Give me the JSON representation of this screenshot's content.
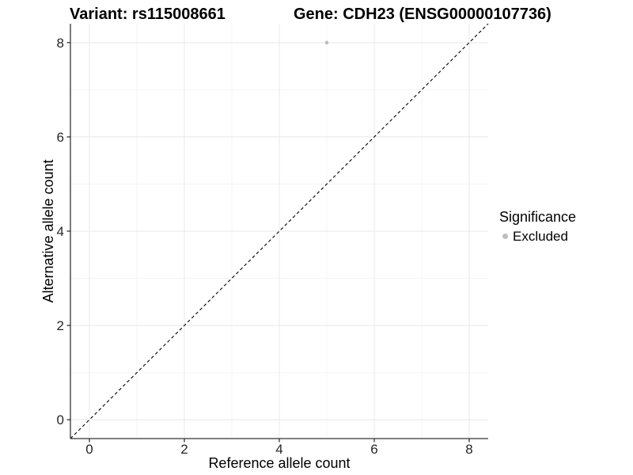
{
  "chart_data": {
    "type": "scatter",
    "title_left": "Variant: rs115008661",
    "title_right": "Gene: CDH23 (ENSG00000107736)",
    "xlabel": "Reference allele count",
    "ylabel": "Alternative allele count",
    "xlim": [
      -0.4,
      8.4
    ],
    "ylim": [
      -0.4,
      8.4
    ],
    "x_ticks": [
      0,
      2,
      4,
      6,
      8
    ],
    "y_ticks": [
      0,
      2,
      4,
      6,
      8
    ],
    "x_minor_ticks": [
      1,
      3,
      5,
      7
    ],
    "y_minor_ticks": [
      1,
      3,
      5,
      7
    ],
    "grid": true,
    "legend_position": "right",
    "points": [
      {
        "x": 5,
        "y": 8,
        "series": "Excluded"
      }
    ],
    "reference_line": {
      "style": "dashed",
      "slope": 1,
      "intercept": 0
    },
    "legend": {
      "title": "Significance",
      "items": [
        {
          "label": "Excluded",
          "color": "#bebebe"
        }
      ]
    },
    "colors": {
      "point": "#bebebe",
      "grid_major": "#e8e8e8",
      "grid_minor": "#f4f4f4",
      "axis_line": "#333333",
      "tick_mark": "#333333",
      "tick_text": "#262626",
      "dashed_line": "#000000"
    }
  }
}
